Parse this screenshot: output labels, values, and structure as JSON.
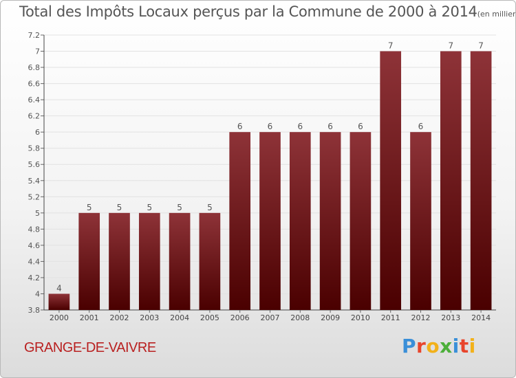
{
  "chart_data": {
    "type": "bar",
    "title": "Total des Impôts Locaux perçus par la Commune de 2000 à 2014",
    "unit_note": "(en milliers d'€)",
    "categories": [
      "2000",
      "2001",
      "2002",
      "2003",
      "2004",
      "2005",
      "2006",
      "2007",
      "2008",
      "2009",
      "2010",
      "2011",
      "2012",
      "2013",
      "2014"
    ],
    "values": [
      4.0,
      5.0,
      5.0,
      5.0,
      5.0,
      5.0,
      6.0,
      6.0,
      6.0,
      6.0,
      6.0,
      7.0,
      6.0,
      7.0,
      7.0
    ],
    "data_labels": [
      "4",
      "5",
      "5",
      "5",
      "5",
      "5",
      "6",
      "6",
      "6",
      "6",
      "6",
      "7",
      "6",
      "7",
      "7"
    ],
    "ylim": [
      3.8,
      7.2
    ],
    "yticks": [
      "3.8",
      "4",
      "4.2",
      "4.4",
      "4.6",
      "4.8",
      "5",
      "5.2",
      "5.4",
      "5.6",
      "5.8",
      "6",
      "6.2",
      "6.4",
      "6.6",
      "6.8",
      "7",
      "7.2"
    ],
    "xlabel": "",
    "ylabel": "",
    "grid": true,
    "bar_color_top": "#8e3338",
    "bar_color_bottom": "#4a0000"
  },
  "commune_name": "GRANGE-DE-VAIVRE",
  "logo": {
    "text": "Proxiti",
    "letters": [
      "P",
      "r",
      "o",
      "x",
      "i",
      "t",
      "i"
    ],
    "colors": [
      "#3a8fd8",
      "#e8452c",
      "#f2b11a",
      "#4caf3a",
      "#3a8fd8",
      "#e8452c",
      "#f2b11a"
    ]
  }
}
